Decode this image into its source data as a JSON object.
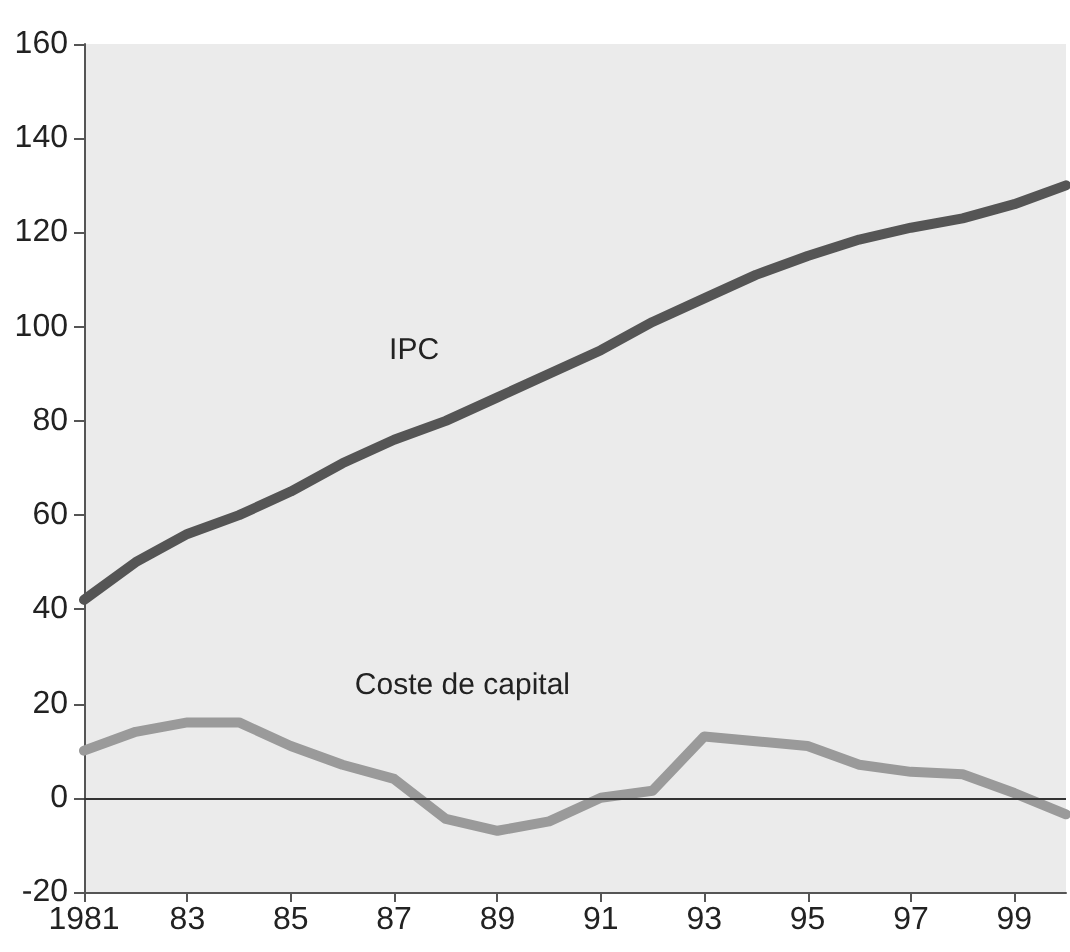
{
  "chart_data": {
    "type": "line",
    "x": [
      1981,
      1982,
      1983,
      1984,
      1985,
      1986,
      1987,
      1988,
      1989,
      1990,
      1991,
      1992,
      1993,
      1994,
      1995,
      1996,
      1997,
      1998,
      1999,
      2000
    ],
    "series": [
      {
        "name": "IPC",
        "color": "#555555",
        "values": [
          42,
          50,
          56,
          60,
          65,
          71,
          76,
          80,
          85,
          90,
          95,
          101,
          106,
          111,
          115,
          118.5,
          121,
          123,
          126,
          130
        ]
      },
      {
        "name": "Coste de capital",
        "color": "#9a9a9a",
        "values": [
          10,
          14,
          16,
          16,
          11,
          7,
          4,
          -4.5,
          -7,
          -5,
          0,
          1.5,
          13,
          12,
          11,
          7,
          5.5,
          5,
          1,
          -3.5
        ]
      }
    ],
    "xlim": [
      1981,
      2000
    ],
    "ylim": [
      -20,
      160
    ],
    "yticks": [
      -20,
      0,
      20,
      40,
      60,
      80,
      100,
      120,
      140,
      160
    ],
    "xticks": [
      {
        "value": 1981,
        "label": "1981"
      },
      {
        "value": 1983,
        "label": "83"
      },
      {
        "value": 1985,
        "label": "85"
      },
      {
        "value": 1987,
        "label": "87"
      },
      {
        "value": 1989,
        "label": "89"
      },
      {
        "value": 1991,
        "label": "91"
      },
      {
        "value": 1993,
        "label": "93"
      },
      {
        "value": 1995,
        "label": "95"
      },
      {
        "value": 1997,
        "label": "97"
      },
      {
        "value": 1999,
        "label": "99"
      }
    ],
    "ref_lines": [
      {
        "axis": "y",
        "value": 0,
        "color": "#333333"
      }
    ],
    "grid": false,
    "legend": false,
    "marker": "none",
    "line_style": "solid"
  }
}
